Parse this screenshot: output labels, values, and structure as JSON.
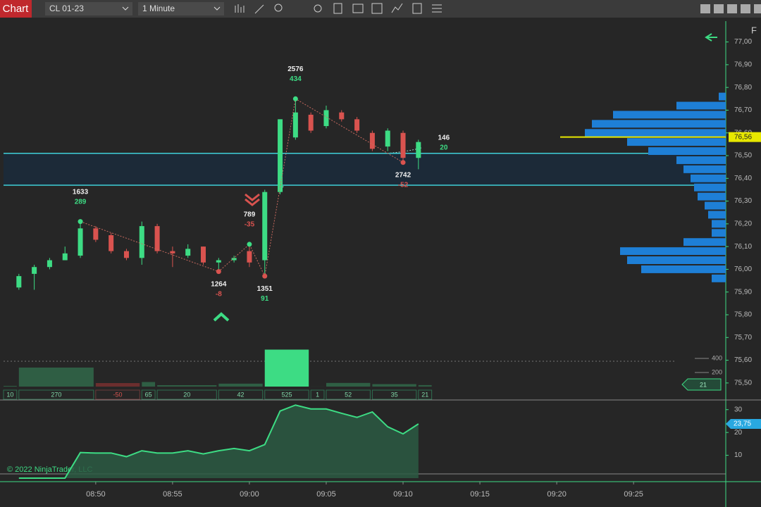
{
  "toolbar": {
    "title": "Chart",
    "instrument": "CL 01-23",
    "interval": "1 Minute",
    "corner": "F"
  },
  "chart_data": {
    "type": "candlestick",
    "x": [
      "08:45",
      "08:46",
      "08:47",
      "08:48",
      "08:49",
      "08:50",
      "08:51",
      "08:52",
      "08:53",
      "08:54",
      "08:55",
      "08:56",
      "08:57",
      "08:58",
      "08:59",
      "09:00",
      "09:01",
      "09:02",
      "09:03",
      "09:04",
      "09:05",
      "09:06",
      "09:07",
      "09:08",
      "09:09",
      "09:10",
      "09:11"
    ],
    "open": [
      75.92,
      75.98,
      76.01,
      76.04,
      76.06,
      76.18,
      76.15,
      76.08,
      76.05,
      76.19,
      76.08,
      76.06,
      76.1,
      76.03,
      76.04,
      76.08,
      76.04,
      76.34,
      76.58,
      76.68,
      76.63,
      76.69,
      76.66,
      76.6,
      76.54,
      76.6,
      76.49
    ],
    "high": [
      75.98,
      76.02,
      76.05,
      76.1,
      76.21,
      76.19,
      76.16,
      76.09,
      76.21,
      76.2,
      76.1,
      76.11,
      76.1,
      76.05,
      76.06,
      76.11,
      76.35,
      76.66,
      76.75,
      76.69,
      76.72,
      76.7,
      76.67,
      76.61,
      76.62,
      76.61,
      76.57
    ],
    "low": [
      75.91,
      75.91,
      76.0,
      76.04,
      76.05,
      76.12,
      76.07,
      76.04,
      76.02,
      76.07,
      76.01,
      76.05,
      76.02,
      75.99,
      76.03,
      76.01,
      75.97,
      76.33,
      76.57,
      76.6,
      76.62,
      76.65,
      76.6,
      76.52,
      76.52,
      76.47,
      76.44
    ],
    "close": [
      75.97,
      76.01,
      76.04,
      76.07,
      76.18,
      76.13,
      76.08,
      76.05,
      76.19,
      76.08,
      76.07,
      76.09,
      76.03,
      76.04,
      76.05,
      76.03,
      76.34,
      76.66,
      76.69,
      76.61,
      76.7,
      76.66,
      76.61,
      76.53,
      76.61,
      76.49,
      76.56
    ],
    "up_color": "#3ddc84",
    "down_color": "#d9534f",
    "xlim": [
      "08:44",
      "09:31"
    ],
    "xticks": [
      "08:50",
      "08:55",
      "09:00",
      "09:05",
      "09:10",
      "09:15",
      "09:20",
      "09:25"
    ],
    "ylim": [
      75.45,
      77.07
    ],
    "yticks": [
      {
        "value": 77,
        "label": "77,00"
      },
      {
        "value": 76.9,
        "label": "76,90"
      },
      {
        "value": 76.8,
        "label": "76,80"
      },
      {
        "value": 76.7,
        "label": "76,70"
      },
      {
        "value": 76.6,
        "label": "76,60"
      },
      {
        "value": 76.5,
        "label": "76,50"
      },
      {
        "value": 76.4,
        "label": "76,40"
      },
      {
        "value": 76.3,
        "label": "76,30"
      },
      {
        "value": 76.2,
        "label": "76,20"
      },
      {
        "value": 76.1,
        "label": "76,10"
      },
      {
        "value": 76,
        "label": "76,00"
      },
      {
        "value": 75.9,
        "label": "75,90"
      },
      {
        "value": 75.8,
        "label": "75,80"
      },
      {
        "value": 75.7,
        "label": "75,70"
      },
      {
        "value": 75.6,
        "label": "75,60"
      },
      {
        "value": 75.5,
        "label": "75,50"
      }
    ],
    "last_price": {
      "value": 76.56,
      "label": "76,56"
    },
    "levels": [
      76.51,
      76.37
    ],
    "swings": [
      {
        "x": "08:49",
        "price": 76.21,
        "volume": 1633,
        "delta": 289
      },
      {
        "x": "08:58",
        "price": 75.99,
        "volume": 1264,
        "delta": -8
      },
      {
        "x": "09:00",
        "price": 76.11,
        "volume": 789,
        "delta": -35
      },
      {
        "x": "09:01",
        "price": 75.97,
        "volume": 1351,
        "delta": 91
      },
      {
        "x": "09:03",
        "price": 76.75,
        "volume": 2576,
        "delta": 434
      },
      {
        "x": "09:10",
        "price": 76.47,
        "volume": 2742,
        "delta": -52
      }
    ],
    "current_swing": {
      "volume": 146,
      "delta": 20
    },
    "profile": {
      "color": "#1e7fd6",
      "prices": [
        76.76,
        76.72,
        76.68,
        76.64,
        76.6,
        76.56,
        76.52,
        76.48,
        76.44,
        76.4,
        76.36,
        76.32,
        76.28,
        76.24,
        76.2,
        76.16,
        76.12,
        76.08,
        76.04,
        76.0,
        75.96
      ],
      "values": [
        10,
        70,
        160,
        190,
        200,
        140,
        110,
        70,
        60,
        50,
        45,
        40,
        30,
        25,
        20,
        20,
        60,
        150,
        140,
        120,
        20
      ]
    },
    "swing_deltas": {
      "starts": [
        "08:44",
        "08:45",
        "08:50",
        "08:53",
        "08:54",
        "08:58",
        "09:01",
        "09:04",
        "09:05",
        "09:08",
        "09:11"
      ],
      "values": [
        10,
        270,
        -50,
        65,
        20,
        42,
        525,
        1,
        52,
        35,
        21
      ],
      "ylim": [
        0,
        540
      ],
      "yticks": [
        400,
        200
      ]
    },
    "indicator": {
      "color": "#3ddc84",
      "values": [
        0,
        0,
        0,
        0,
        11.2,
        11,
        11,
        9.4,
        12,
        11,
        11,
        12,
        10.6,
        12,
        13,
        12,
        14.7,
        29.4,
        32,
        30.3,
        30.3,
        28.4,
        26.6,
        29,
        22.5,
        19.4,
        23.75
      ],
      "ylim": [
        0,
        33
      ],
      "yticks": [
        30,
        20,
        10
      ],
      "last": {
        "value": 23.75,
        "label": "23,75"
      }
    },
    "copyright": "© 2022 NinjaTrader, LLC"
  }
}
